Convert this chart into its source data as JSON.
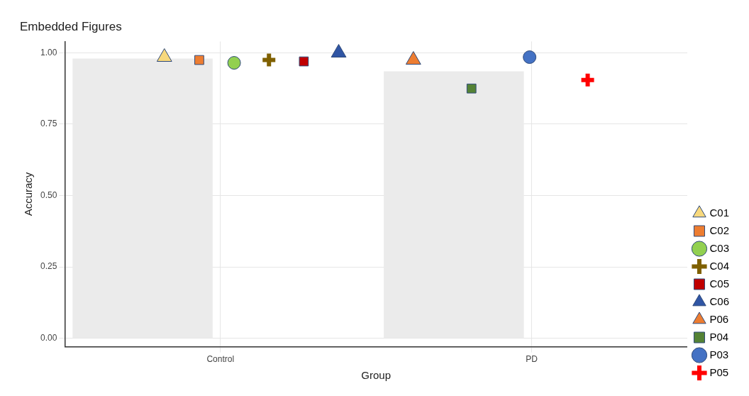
{
  "chart_data": {
    "type": "bar",
    "title": "Embedded Figures",
    "xlabel": "Group",
    "ylabel": "Accuracy",
    "categories": [
      "Control",
      "PD"
    ],
    "ylim": [
      -0.03,
      1.04
    ],
    "yticks": [
      {
        "value": 0,
        "label": "0.00"
      },
      {
        "value": 0.25,
        "label": "0.25"
      },
      {
        "value": 0.5,
        "label": "0.50"
      },
      {
        "value": 0.75,
        "label": "0.75"
      },
      {
        "value": 1,
        "label": "1.00"
      }
    ],
    "grid": true,
    "legend": "bottom right",
    "series": [
      {
        "color": "#ebebeb",
        "values": [
          0.98,
          0.935
        ]
      },
      {
        "type": "scatter",
        "name": "C01",
        "color": "#f7d87c",
        "marker": "triangle",
        "x": [
          "Control"
        ],
        "values": [
          0.985
        ]
      },
      {
        "type": "scatter",
        "name": "C02",
        "color": "#ed7d31",
        "marker": "square",
        "x": [
          "Control"
        ],
        "values": [
          0.975
        ]
      },
      {
        "type": "scatter",
        "name": "C03",
        "color": "#92d050",
        "marker": "circle",
        "x": [
          "Control"
        ],
        "values": [
          0.965
        ]
      },
      {
        "type": "scatter",
        "name": "C04",
        "color": "#7f6000",
        "marker": "cross",
        "x": [
          "Control"
        ],
        "values": [
          0.975
        ]
      },
      {
        "type": "scatter",
        "name": "C05",
        "color": "#c00000",
        "marker": "square",
        "x": [
          "Control"
        ],
        "values": [
          0.97
        ]
      },
      {
        "type": "scatter",
        "name": "C06",
        "color": "#2f55a4",
        "marker": "triangle",
        "x": [
          "Control"
        ],
        "values": [
          1.0
        ]
      },
      {
        "type": "scatter",
        "name": "P06",
        "color": "#ed7d31",
        "marker": "triangle",
        "x": [
          "PD"
        ],
        "values": [
          0.975
        ]
      },
      {
        "type": "scatter",
        "name": "P04",
        "color": "#548235",
        "marker": "square",
        "x": [
          "PD"
        ],
        "values": [
          0.875
        ]
      },
      {
        "type": "scatter",
        "name": "P03",
        "color": "#4472c4",
        "marker": "circle",
        "x": [
          "PD"
        ],
        "values": [
          0.985
        ]
      },
      {
        "type": "scatter",
        "name": "P05",
        "color": "#ff0000",
        "marker": "cross",
        "x": [
          "PD"
        ],
        "values": [
          0.905
        ]
      }
    ]
  }
}
